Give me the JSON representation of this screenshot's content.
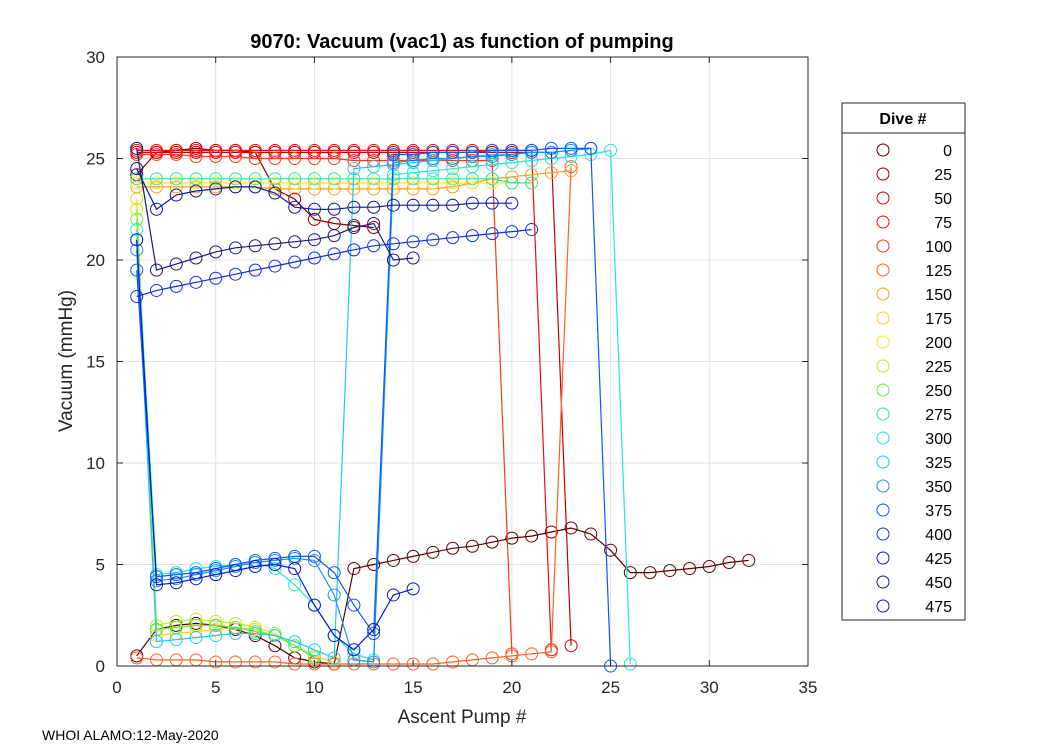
{
  "chart_data": {
    "type": "scatter",
    "title": "9070: Vacuum (vac1) as function of pumping",
    "xlabel": "Ascent Pump #",
    "ylabel": "Vacuum (mmHg)",
    "xlim": [
      0,
      35
    ],
    "ylim": [
      0,
      30
    ],
    "xticks": [
      0,
      5,
      10,
      15,
      20,
      25,
      30,
      35
    ],
    "yticks": [
      0,
      5,
      10,
      15,
      20,
      25,
      30
    ],
    "grid": true,
    "legend": {
      "title": "Dive #",
      "placement": "right",
      "entries": [
        {
          "label": "0",
          "color": "#5a0000"
        },
        {
          "label": "25",
          "color": "#8a0000"
        },
        {
          "label": "50",
          "color": "#c40000"
        },
        {
          "label": "75",
          "color": "#e81010"
        },
        {
          "label": "100",
          "color": "#f53b1a"
        },
        {
          "label": "125",
          "color": "#ff6020"
        },
        {
          "label": "150",
          "color": "#ff9a20"
        },
        {
          "label": "175",
          "color": "#ffd020"
        },
        {
          "label": "200",
          "color": "#f3ef20"
        },
        {
          "label": "225",
          "color": "#b8f028"
        },
        {
          "label": "250",
          "color": "#60f040"
        },
        {
          "label": "275",
          "color": "#30e890"
        },
        {
          "label": "300",
          "color": "#20e8d8"
        },
        {
          "label": "325",
          "color": "#20c8f0"
        },
        {
          "label": "350",
          "color": "#2090f0"
        },
        {
          "label": "375",
          "color": "#1058f0"
        },
        {
          "label": "400",
          "color": "#1030e0"
        },
        {
          "label": "425",
          "color": "#0818c8"
        },
        {
          "label": "450",
          "color": "#0a1a9a"
        },
        {
          "label": "475",
          "color": "#1a1a78"
        }
      ]
    },
    "series": [
      {
        "name": "0",
        "color": "#5a0000",
        "x": [
          1,
          2,
          3,
          4,
          5,
          6,
          7,
          8,
          9,
          10,
          11,
          12,
          13,
          14,
          15,
          16,
          17,
          18,
          19,
          20,
          21,
          22,
          23,
          24,
          25,
          26,
          27,
          28,
          29,
          30,
          31,
          32
        ],
        "y": [
          0.5,
          1.8,
          2.0,
          2.1,
          2.0,
          1.8,
          1.5,
          1.0,
          0.4,
          0.2,
          0.1,
          4.8,
          5.0,
          5.2,
          5.4,
          5.6,
          5.8,
          5.9,
          6.1,
          6.3,
          6.4,
          6.6,
          6.8,
          6.5,
          5.7,
          4.6,
          4.6,
          4.7,
          4.8,
          4.9,
          5.1,
          5.2
        ]
      },
      {
        "name": "25",
        "color": "#8a0000",
        "x": [
          1,
          2,
          3,
          4,
          5,
          6,
          7,
          8,
          9,
          10,
          11,
          12,
          13
        ],
        "y": [
          24.2,
          25.3,
          25.4,
          25.5,
          25.4,
          25.4,
          25.3,
          23.5,
          23.0,
          22.0,
          21.8,
          21.7,
          21.6
        ]
      },
      {
        "name": "50",
        "color": "#c40000",
        "x": [
          1,
          2,
          3,
          4,
          5,
          6,
          7,
          8,
          9,
          10,
          11,
          12,
          13,
          14,
          15,
          16,
          17,
          18,
          19,
          20,
          21,
          22,
          23
        ],
        "y": [
          25.3,
          25.3,
          25.3,
          25.3,
          25.3,
          25.3,
          25.3,
          25.3,
          25.3,
          25.3,
          25.3,
          25.3,
          25.3,
          25.3,
          25.3,
          25.3,
          25.3,
          25.3,
          25.3,
          25.3,
          25.3,
          25.3,
          1.0
        ]
      },
      {
        "name": "75",
        "color": "#e81010",
        "x": [
          1,
          2,
          3,
          4,
          5,
          6,
          7,
          8,
          9,
          10,
          11,
          12,
          13,
          14,
          15,
          16,
          17,
          18,
          19,
          20,
          21,
          22
        ],
        "y": [
          25.4,
          25.4,
          25.4,
          25.4,
          25.4,
          25.4,
          25.4,
          25.4,
          25.4,
          25.4,
          25.4,
          25.4,
          25.4,
          25.4,
          25.4,
          25.4,
          25.4,
          25.4,
          25.4,
          25.4,
          25.4,
          0.8
        ]
      },
      {
        "name": "100",
        "color": "#f53b1a",
        "x": [
          1,
          2,
          3,
          4,
          5,
          6,
          7,
          8,
          9,
          10,
          11,
          12,
          13,
          14,
          15,
          16,
          17,
          18,
          19,
          20
        ],
        "y": [
          25.2,
          25.2,
          25.2,
          25.1,
          25.1,
          25.1,
          25.0,
          25.0,
          25.0,
          25.0,
          25.0,
          24.9,
          24.9,
          24.9,
          24.9,
          24.9,
          24.9,
          24.9,
          24.9,
          0.6
        ]
      },
      {
        "name": "125",
        "color": "#ff6020",
        "x": [
          1,
          2,
          3,
          4,
          5,
          6,
          7,
          8,
          9,
          10,
          11,
          12,
          13,
          14,
          15,
          16,
          17,
          18,
          19,
          20,
          21,
          22,
          23
        ],
        "y": [
          0.4,
          0.3,
          0.3,
          0.3,
          0.2,
          0.2,
          0.2,
          0.2,
          0.1,
          0.1,
          0.1,
          0.1,
          0.1,
          0.1,
          0.1,
          0.1,
          0.2,
          0.3,
          0.4,
          0.5,
          0.6,
          0.7,
          24.6
        ]
      },
      {
        "name": "150",
        "color": "#ff9a20",
        "x": [
          1,
          2,
          3,
          4,
          5,
          6,
          7,
          8,
          9,
          10,
          11,
          12,
          13,
          14,
          15,
          16,
          17,
          18,
          19,
          20,
          21,
          22,
          23
        ],
        "y": [
          23.6,
          23.6,
          23.6,
          23.6,
          23.6,
          23.6,
          23.6,
          23.5,
          23.5,
          23.5,
          23.5,
          23.5,
          23.5,
          23.5,
          23.5,
          23.5,
          23.6,
          23.8,
          24.0,
          24.1,
          24.2,
          24.3,
          24.4
        ]
      },
      {
        "name": "175",
        "color": "#ffd020",
        "x": [
          1,
          2,
          3,
          4,
          5,
          6,
          7,
          8,
          9,
          10,
          11
        ],
        "y": [
          23.0,
          1.5,
          1.6,
          1.7,
          1.8,
          1.9,
          1.8,
          1.5,
          1.0,
          0.5,
          0.2
        ]
      },
      {
        "name": "200",
        "color": "#f3ef20",
        "x": [
          1,
          2,
          3,
          4,
          5,
          6,
          7,
          8,
          9,
          10,
          11,
          12,
          13,
          14,
          15,
          16,
          17,
          18,
          19,
          20
        ],
        "y": [
          23.8,
          23.8,
          23.8,
          23.8,
          23.8,
          23.8,
          23.8,
          23.8,
          23.8,
          23.8,
          23.8,
          23.8,
          23.8,
          23.8,
          23.8,
          23.8,
          23.8,
          23.8,
          23.8,
          23.8
        ]
      },
      {
        "name": "225",
        "color": "#b8f028",
        "x": [
          1,
          2,
          3,
          4,
          5,
          6,
          7,
          8,
          9,
          10
        ],
        "y": [
          22.5,
          2.0,
          2.2,
          2.3,
          2.2,
          2.1,
          1.9,
          1.6,
          1.0,
          0.5
        ]
      },
      {
        "name": "250",
        "color": "#60f040",
        "x": [
          1,
          2,
          3,
          4,
          5,
          6,
          7,
          8,
          9,
          10
        ],
        "y": [
          22.0,
          1.8,
          1.9,
          2.0,
          2.0,
          1.9,
          1.7,
          1.5,
          1.0,
          0.4
        ]
      },
      {
        "name": "275",
        "color": "#30e890",
        "x": [
          1,
          2,
          3,
          4,
          5,
          6,
          7,
          8,
          9,
          10,
          11,
          12,
          13,
          14,
          15,
          16,
          17,
          18,
          19,
          20,
          21
        ],
        "y": [
          24.0,
          24.0,
          24.0,
          24.0,
          24.0,
          24.0,
          24.0,
          24.0,
          24.0,
          24.0,
          24.0,
          24.0,
          24.0,
          24.0,
          24.0,
          24.0,
          24.0,
          24.0,
          24.0,
          23.8,
          23.8
        ]
      },
      {
        "name": "300",
        "color": "#20e8d8",
        "x": [
          1,
          2,
          3,
          4,
          5,
          6,
          7,
          8,
          9,
          10,
          11,
          12,
          13,
          14,
          15,
          16,
          17,
          18,
          19,
          20,
          21,
          22,
          23,
          24,
          25,
          26
        ],
        "y": [
          21.5,
          4.5,
          4.6,
          4.8,
          4.9,
          5.0,
          5.1,
          4.8,
          4.0,
          3.0,
          1.5,
          0.6,
          0.3,
          24.2,
          24.3,
          24.4,
          24.5,
          24.6,
          24.7,
          24.8,
          24.9,
          25.0,
          25.1,
          25.2,
          25.4,
          0.1
        ]
      },
      {
        "name": "325",
        "color": "#20c8f0",
        "x": [
          1,
          2,
          3,
          4,
          5,
          6,
          7,
          8,
          9,
          10,
          11,
          12,
          13,
          14,
          15,
          16,
          17,
          18,
          19,
          20,
          21
        ],
        "y": [
          21.0,
          1.2,
          1.3,
          1.4,
          1.5,
          1.6,
          1.6,
          1.5,
          1.2,
          0.8,
          0.4,
          24.5,
          24.6,
          24.7,
          24.8,
          24.9,
          25.0,
          25.1,
          25.2,
          25.2,
          25.3
        ]
      },
      {
        "name": "350",
        "color": "#2090f0",
        "x": [
          1,
          2,
          3,
          4,
          5,
          6,
          7,
          8,
          9,
          10,
          11,
          12,
          13,
          14,
          15,
          16,
          17,
          18,
          19,
          20,
          21,
          22,
          23,
          24
        ],
        "y": [
          20.5,
          4.2,
          4.3,
          4.5,
          4.7,
          4.9,
          5.1,
          5.2,
          5.3,
          5.2,
          3.5,
          0.3,
          0.2,
          24.8,
          24.9,
          25.0,
          25.0,
          25.1,
          25.1,
          25.2,
          25.3,
          25.3,
          25.4,
          25.5
        ]
      },
      {
        "name": "375",
        "color": "#1058f0",
        "x": [
          1,
          2,
          3,
          4,
          5,
          6,
          7,
          8,
          9,
          10,
          11,
          12,
          13,
          14,
          15,
          16,
          17,
          18,
          19,
          20,
          21,
          22,
          23,
          24,
          25
        ],
        "y": [
          19.5,
          4.4,
          4.5,
          4.6,
          4.8,
          5.0,
          5.2,
          5.3,
          5.4,
          5.4,
          4.6,
          3.0,
          1.6,
          25.2,
          25.2,
          25.3,
          25.3,
          25.3,
          25.4,
          25.4,
          25.4,
          25.5,
          25.5,
          25.5,
          0.0
        ]
      },
      {
        "name": "400",
        "color": "#1030e0",
        "x": [
          1,
          2,
          3,
          4,
          5,
          6,
          7,
          8,
          9,
          10,
          11,
          12,
          13,
          14,
          15,
          16,
          17,
          18,
          19,
          20,
          21
        ],
        "y": [
          18.2,
          18.5,
          18.7,
          18.9,
          19.1,
          19.3,
          19.5,
          19.7,
          19.9,
          20.1,
          20.3,
          20.5,
          20.7,
          20.8,
          20.9,
          21.0,
          21.1,
          21.2,
          21.3,
          21.4,
          21.5
        ]
      },
      {
        "name": "425",
        "color": "#0818c8",
        "x": [
          1,
          2,
          3,
          4,
          5,
          6,
          7,
          8,
          9,
          10,
          11,
          12,
          13,
          14,
          15
        ],
        "y": [
          21.0,
          4.0,
          4.1,
          4.3,
          4.5,
          4.7,
          4.9,
          5.0,
          4.8,
          3.0,
          1.5,
          0.8,
          1.8,
          3.5,
          3.8
        ]
      },
      {
        "name": "450",
        "color": "#0a1a9a",
        "x": [
          1,
          2,
          3,
          4,
          5,
          6,
          7,
          8,
          9,
          10,
          11,
          12,
          13,
          14,
          15,
          16,
          17,
          18,
          19,
          20
        ],
        "y": [
          24.5,
          22.5,
          23.2,
          23.4,
          23.5,
          23.6,
          23.6,
          23.3,
          22.6,
          22.5,
          22.5,
          22.6,
          22.6,
          22.7,
          22.7,
          22.7,
          22.7,
          22.8,
          22.8,
          22.8
        ]
      },
      {
        "name": "475",
        "color": "#1a1a78",
        "x": [
          1,
          2,
          3,
          4,
          5,
          6,
          7,
          8,
          9,
          10,
          11,
          12,
          13,
          14,
          15
        ],
        "y": [
          25.5,
          19.5,
          19.8,
          20.1,
          20.4,
          20.6,
          20.7,
          20.8,
          20.9,
          21.0,
          21.2,
          21.6,
          21.8,
          20.0,
          20.1
        ]
      }
    ]
  },
  "footer": "WHOI ALAMO:12-May-2020"
}
